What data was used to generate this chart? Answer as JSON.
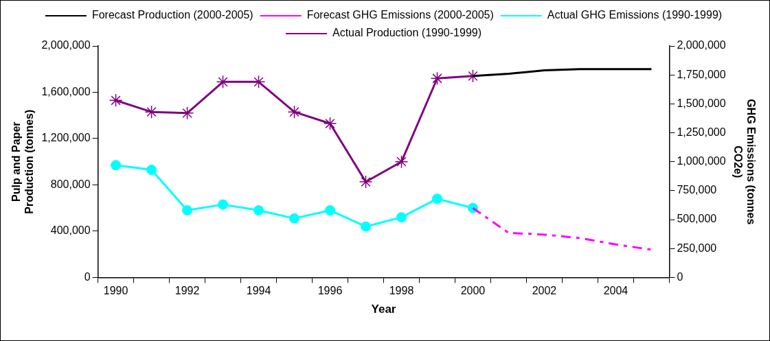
{
  "chart_data": {
    "type": "line",
    "xlabel": "Year",
    "ylabel": "Pulp and Paper Production (tonnes)",
    "y2label": "GHG Emissions (tonnes CO2e)",
    "categories": [
      "1990",
      null,
      "1992",
      null,
      "1994",
      null,
      "1996",
      null,
      "1998",
      null,
      "2000",
      null,
      "2002",
      null,
      "2004",
      null
    ],
    "series": [
      {
        "name": "Forecast Production (2000-2005)",
        "color": "#000000",
        "marker": "none",
        "line_style": "solid",
        "values": [
          null,
          null,
          null,
          null,
          null,
          null,
          null,
          null,
          null,
          null,
          1740000,
          1760000,
          1790000,
          1800000,
          1800000,
          1800000
        ]
      },
      {
        "name": "Forecast GHG Emissions (2000-2005)",
        "color": "#ff00ff",
        "marker": "none",
        "line_style": "dashed",
        "values": [
          null,
          null,
          null,
          null,
          null,
          null,
          null,
          null,
          null,
          null,
          600000,
          385000,
          370000,
          340000,
          285000,
          240000
        ]
      },
      {
        "name": "Actual GHG Emissions (1990-1999)",
        "color": "#00ffff",
        "marker": "circle",
        "line_style": "solid",
        "values": [
          970000,
          930000,
          580000,
          630000,
          580000,
          510000,
          580000,
          440000,
          520000,
          680000,
          600000,
          null,
          null,
          null,
          null,
          null
        ]
      },
      {
        "name": "Actual Production (1990-1999)",
        "color": "#800080",
        "marker": "cross",
        "line_style": "solid",
        "values": [
          1530000,
          1430000,
          1420000,
          1690000,
          1690000,
          1430000,
          1330000,
          826000,
          1000000,
          1720000,
          1740000,
          null,
          null,
          null,
          null,
          null
        ]
      }
    ],
    "ylim": [
      0,
      2000000
    ],
    "yticks": [
      0,
      {
        "value": 400000,
        "label": "400,000"
      },
      {
        "value": 800000,
        "label": "800,000"
      },
      {
        "value": 1200000,
        "label": "1,200,000"
      },
      {
        "value": 1600000,
        "label": "1,600,000"
      },
      {
        "value": 2000000,
        "label": "2,000,000"
      }
    ],
    "y2lim": [
      0,
      2000000
    ],
    "y2ticks": [
      0,
      {
        "value": 250000,
        "label": "250,000"
      },
      {
        "value": 500000,
        "label": "500,000"
      },
      {
        "value": 750000,
        "label": "750,000"
      },
      {
        "value": 1000000,
        "label": "1,000,000"
      },
      {
        "value": 1250000,
        "label": "1,250,000"
      },
      {
        "value": 1500000,
        "label": "1,500,000"
      },
      {
        "value": 1750000,
        "label": "1,750,000"
      },
      {
        "value": 2000000,
        "label": "2,000,000"
      }
    ],
    "grid": false,
    "legend": "top"
  }
}
